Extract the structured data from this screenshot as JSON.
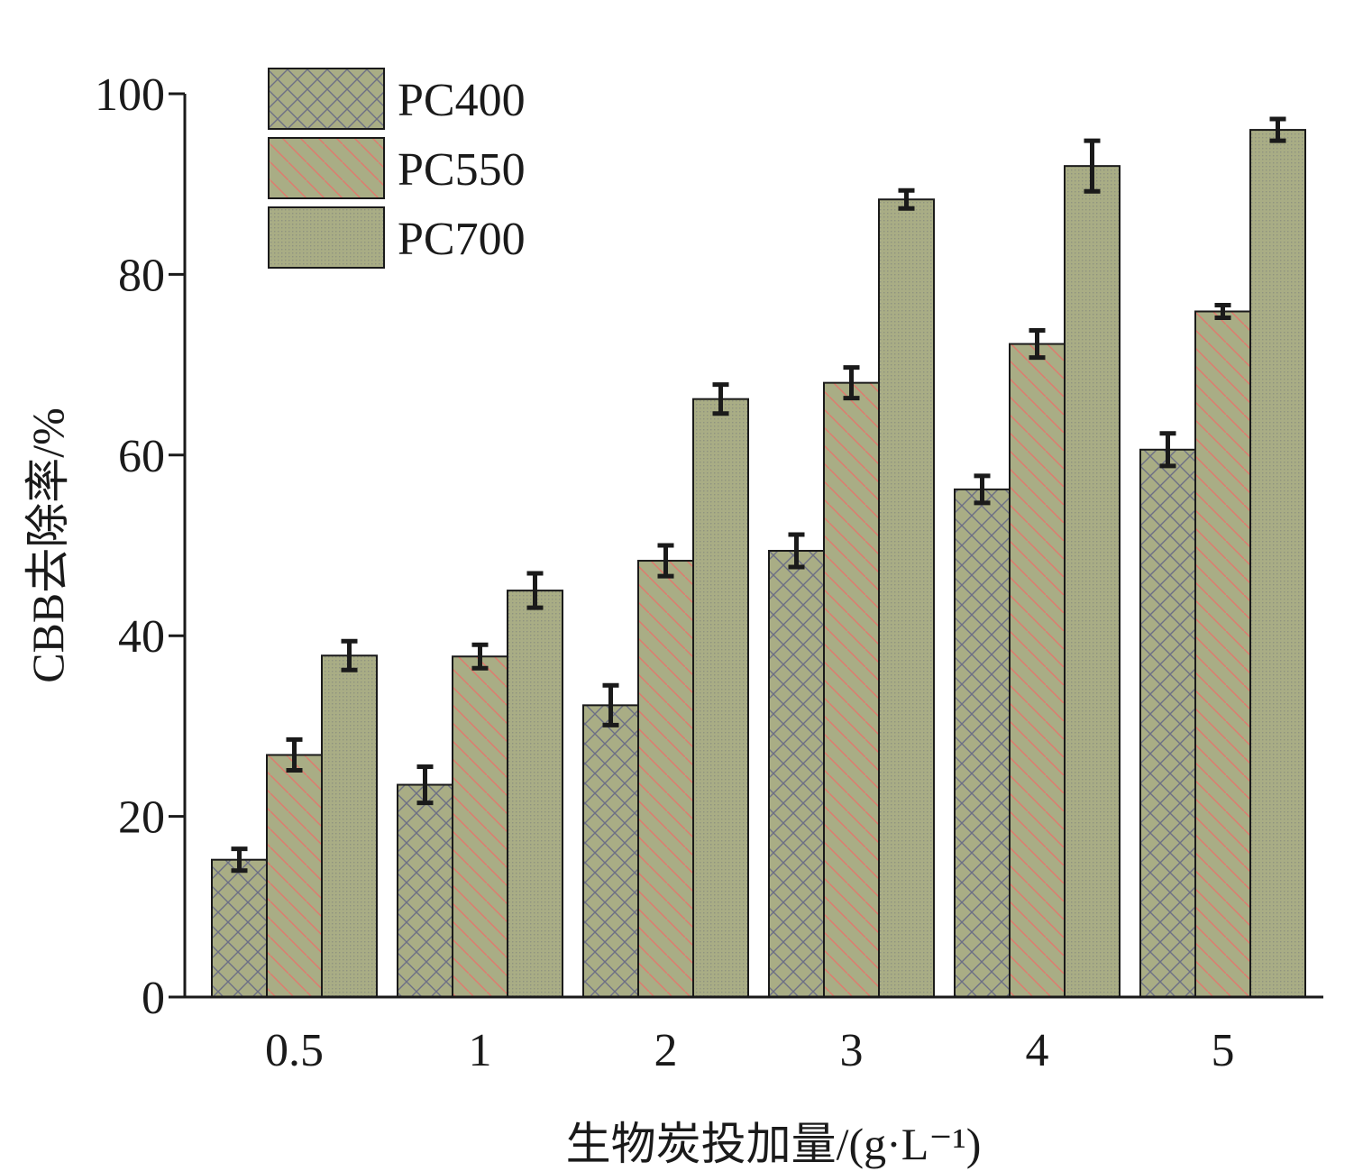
{
  "chart_data": {
    "type": "bar",
    "categories": [
      "0.5",
      "1",
      "2",
      "3",
      "4",
      "5"
    ],
    "series": [
      {
        "name": "PC400",
        "values": [
          15.2,
          23.5,
          32.3,
          49.4,
          56.2,
          60.6
        ],
        "errors": [
          1.2,
          2.0,
          2.2,
          1.8,
          1.5,
          1.8
        ],
        "pattern": "crosshatch"
      },
      {
        "name": "PC550",
        "values": [
          26.8,
          37.7,
          48.3,
          68.0,
          72.3,
          75.9
        ],
        "errors": [
          1.7,
          1.3,
          1.7,
          1.7,
          1.5,
          0.7
        ],
        "pattern": "diagonal"
      },
      {
        "name": "PC700",
        "values": [
          37.8,
          45.0,
          66.2,
          88.3,
          92.0,
          96.0
        ],
        "errors": [
          1.6,
          1.9,
          1.6,
          1.0,
          2.8,
          1.2
        ],
        "pattern": "dots"
      }
    ],
    "xlabel": "生物炭投加量/(g·L⁻¹)",
    "ylabel": "CBB去除率/%",
    "ylim": [
      0,
      100
    ],
    "yticks": [
      0,
      20,
      40,
      60,
      80,
      100
    ],
    "grid": false,
    "legend": "top-left",
    "colors": {
      "bar_fill": "#a9ad85",
      "bar_stroke": "#1a1a1a",
      "crosshatch_line": "#6d6f85",
      "diagonal_line": "#e07a6e",
      "dot_color": "#8f9380",
      "error_bar": "#1a1a1a"
    }
  }
}
